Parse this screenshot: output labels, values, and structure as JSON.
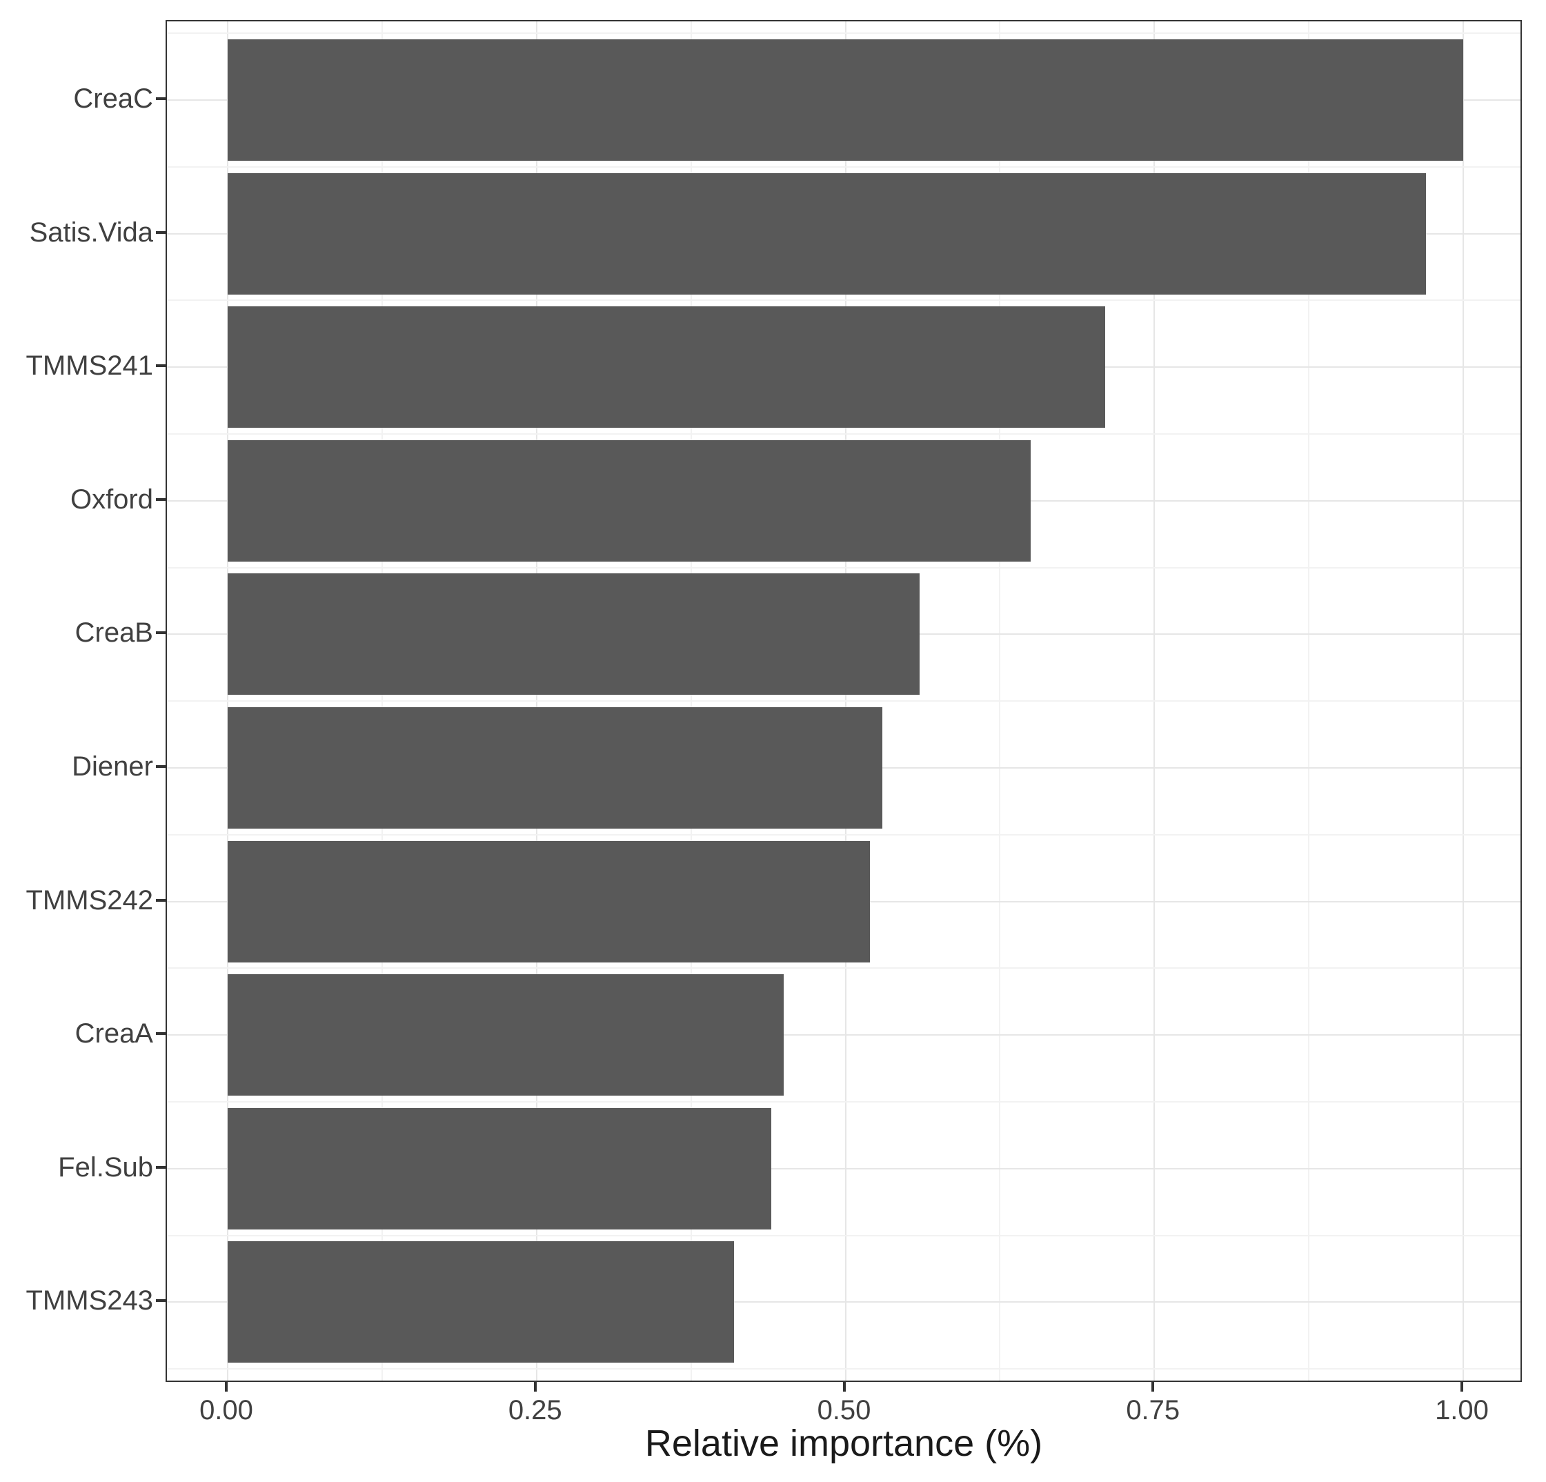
{
  "figure": {
    "background": "#ffffff"
  },
  "chart_data": {
    "type": "bar",
    "orientation": "horizontal",
    "title": "",
    "xlabel": "Relative importance (%)",
    "ylabel": "",
    "categories": [
      "CreaC",
      "Satis.Vida",
      "TMMS241",
      "Oxford",
      "CreaB",
      "Diener",
      "TMMS242",
      "CreaA",
      "Fel.Sub",
      "TMMS243"
    ],
    "values": [
      1.0,
      0.97,
      0.71,
      0.65,
      0.56,
      0.53,
      0.52,
      0.45,
      0.44,
      0.41
    ],
    "x_major_ticks": [
      0,
      0.25,
      0.5,
      0.75,
      1.0
    ],
    "x_tick_labels": [
      "0.00",
      "0.25",
      "0.50",
      "0.75",
      "1.00"
    ],
    "x_minor_ticks": [
      0.125,
      0.375,
      0.625,
      0.875
    ],
    "xlim": [
      -0.05,
      1.05
    ],
    "grid": true,
    "legend": "none",
    "bar_color": "#595959",
    "panel_border_color": "#333333",
    "grid_major_color": "#e6e6e6",
    "grid_minor_color": "#f2f2f2",
    "tick_color": "#333333",
    "axis_text_color": "#404040",
    "axis_title_color": "#1a1a1a"
  }
}
